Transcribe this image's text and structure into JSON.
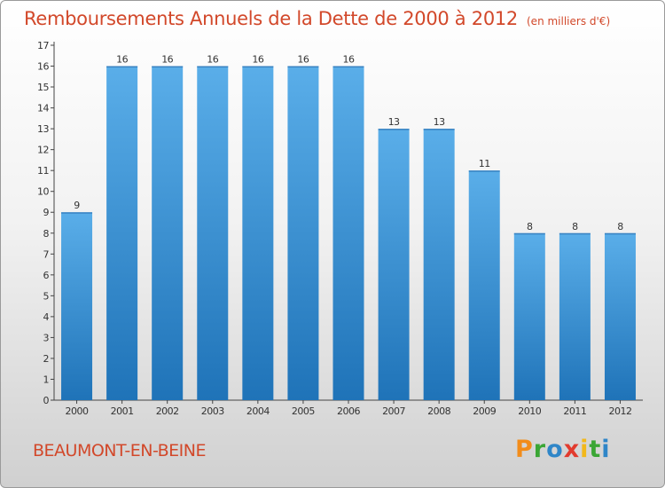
{
  "header": {
    "title": "Remboursements Annuels de la Dette de 2000 à 2012",
    "unit": "(en milliers d'€)"
  },
  "footer": {
    "town": "BEAUMONT-EN-BEINE",
    "logo_text": "Proxiti",
    "logo_colors": [
      "#f28c1a",
      "#3aa635",
      "#2f86c8",
      "#e23b2e",
      "#f2b81a",
      "#3aa635",
      "#2f86c8"
    ]
  },
  "colors": {
    "title": "#d2482a",
    "bar_light": "#5aaee9",
    "bar_dark": "#1f73b8"
  },
  "chart_data": {
    "type": "bar",
    "categories": [
      "2000",
      "2001",
      "2002",
      "2003",
      "2004",
      "2005",
      "2006",
      "2007",
      "2008",
      "2009",
      "2010",
      "2011",
      "2012"
    ],
    "values": [
      9,
      16,
      16,
      16,
      16,
      16,
      16,
      13,
      13,
      11,
      8,
      8,
      8
    ],
    "title": "Remboursements Annuels de la Dette de 2000 à 2012",
    "xlabel": "",
    "ylabel": "",
    "ylim": [
      0,
      17
    ],
    "yticks": [
      0,
      1,
      2,
      3,
      4,
      5,
      6,
      7,
      8,
      9,
      10,
      11,
      12,
      13,
      14,
      15,
      16,
      17
    ],
    "grid": false,
    "legend": "none"
  }
}
